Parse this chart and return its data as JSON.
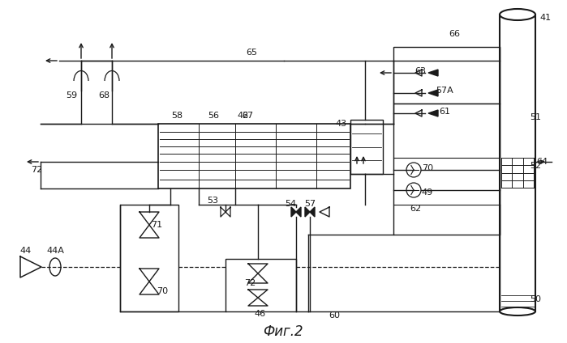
{
  "title": "Фиг.2",
  "bg_color": "#ffffff",
  "line_color": "#1a1a1a"
}
